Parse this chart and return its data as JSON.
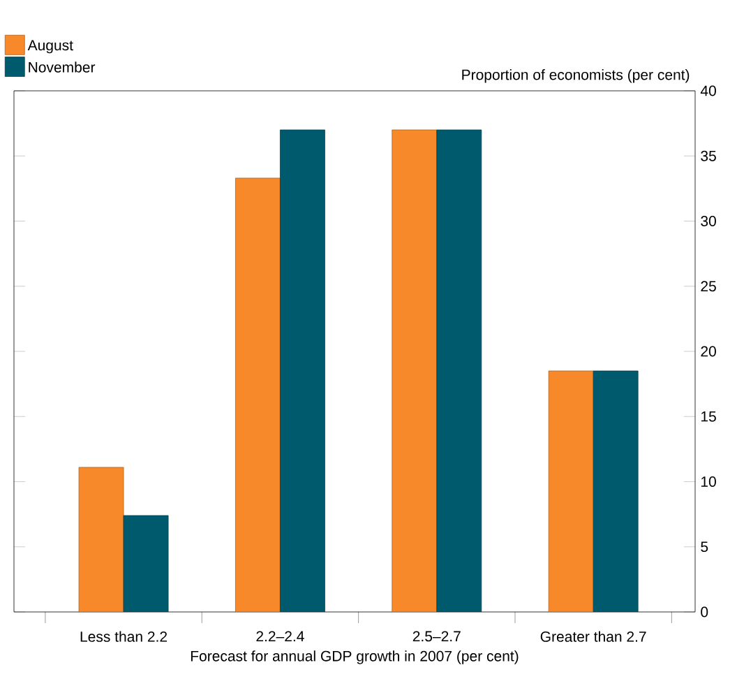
{
  "chart_data": {
    "type": "bar",
    "xlabel": "Forecast for annual GDP growth in 2007 (per cent)",
    "ylabel": "Proportion of economists (per cent)",
    "categories": [
      "Less than 2.2",
      "2.2–2.4",
      "2.5–2.7",
      "Greater than 2.7"
    ],
    "series": [
      {
        "name": "August",
        "color": "#f7892a",
        "values": [
          11.1,
          33.3,
          37.0,
          18.5
        ]
      },
      {
        "name": "November",
        "color": "#005a6e",
        "values": [
          7.4,
          37.0,
          37.0,
          18.5
        ]
      }
    ],
    "ylim": [
      0,
      40
    ],
    "yticks": [
      0,
      5,
      10,
      15,
      20,
      25,
      30,
      35,
      40
    ],
    "grid": false,
    "legend": "top left"
  }
}
